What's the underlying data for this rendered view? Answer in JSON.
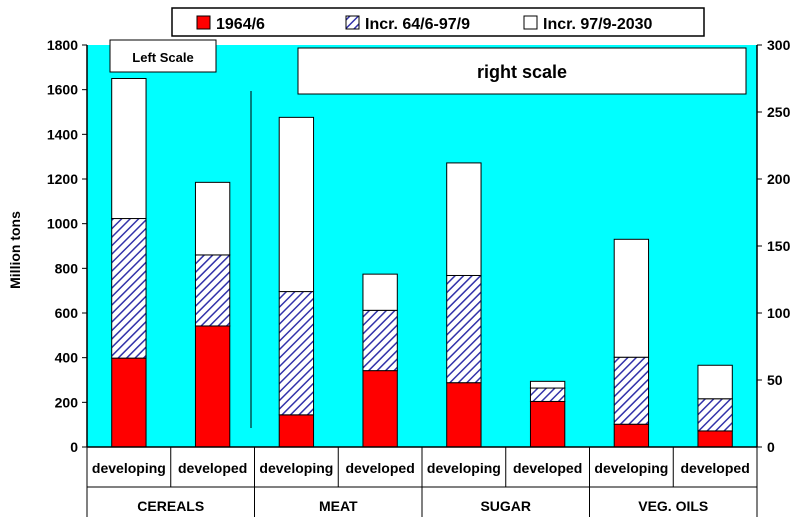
{
  "chart_data": {
    "type": "bar",
    "stacked": true,
    "ylabel": "Million tons",
    "left_axis": {
      "min": 0,
      "max": 1800,
      "step": 200
    },
    "right_axis": {
      "min": 0,
      "max": 300,
      "step": 50
    },
    "annotations": {
      "left_scale": "Left Scale",
      "right_scale": "right scale"
    },
    "legend": {
      "position": "top",
      "items": [
        {
          "label": "1964/6",
          "color": "#ff0000",
          "pattern": "solid"
        },
        {
          "label": "Incr. 64/6-97/9",
          "color": "#3333aa",
          "pattern": "diagonal-hatch"
        },
        {
          "label": "Incr. 97/9-2030",
          "color": "#ffffff",
          "pattern": "solid"
        }
      ]
    },
    "plot_background": "#00ffff",
    "groups": [
      {
        "label": "CEREALS",
        "scale": "left",
        "bars": [
          {
            "label": "developing",
            "values": [
              398,
              625,
              627
            ]
          },
          {
            "label": "developed",
            "values": [
              542,
              318,
              325
            ]
          }
        ]
      },
      {
        "label": "MEAT",
        "scale": "right",
        "bars": [
          {
            "label": "developing",
            "values": [
              24,
              92,
              130
            ]
          },
          {
            "label": "developed",
            "values": [
              57,
              45,
              27
            ]
          }
        ]
      },
      {
        "label": "SUGAR",
        "scale": "right",
        "bars": [
          {
            "label": "developing",
            "values": [
              48,
              80,
              84
            ]
          },
          {
            "label": "developed",
            "values": [
              34,
              10,
              5
            ]
          }
        ]
      },
      {
        "label": "VEG. OILS",
        "scale": "right",
        "bars": [
          {
            "label": "developing",
            "values": [
              17,
              50,
              88
            ]
          },
          {
            "label": "developed",
            "values": [
              12,
              24,
              25
            ]
          }
        ]
      }
    ]
  }
}
